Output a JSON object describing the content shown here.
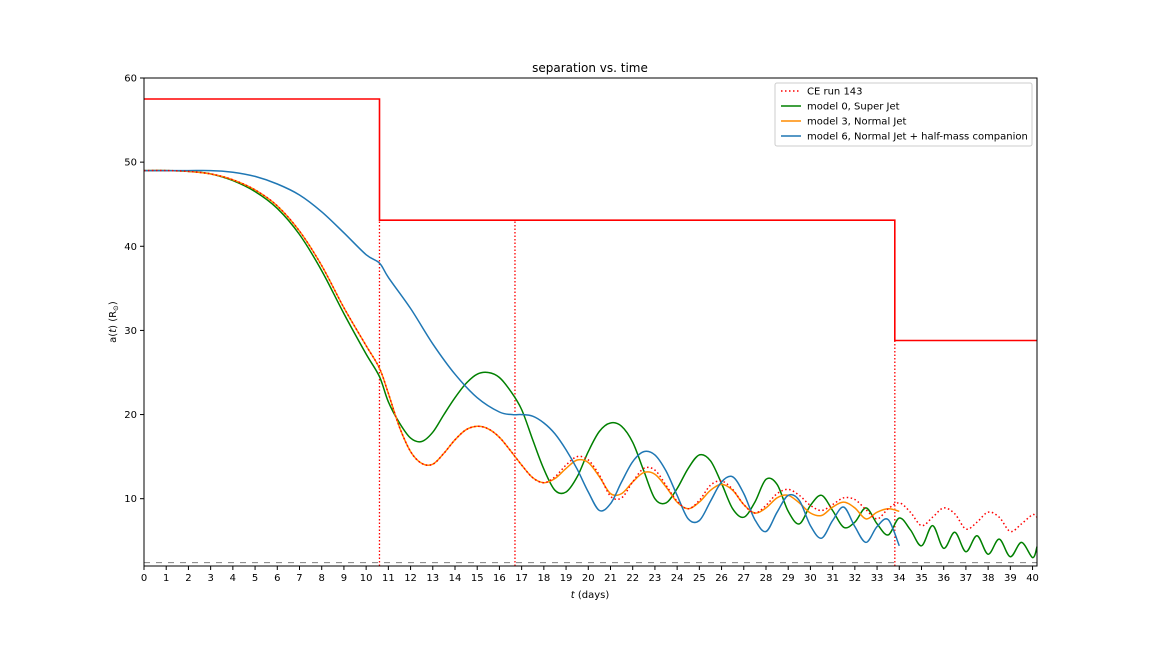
{
  "chart_data": {
    "type": "line",
    "title": "separation vs. time",
    "xlabel_italic": "t",
    "xlabel_rest": " (days)",
    "ylabel_a": "a(",
    "ylabel_t": "t",
    "ylabel_rest": ") (R",
    "ylabel_sun": "⊙",
    "ylabel_close": ")",
    "xlim": [
      0,
      40.2
    ],
    "ylim": [
      2,
      60
    ],
    "xticks": [
      0,
      1,
      2,
      3,
      4,
      5,
      6,
      7,
      8,
      9,
      10,
      11,
      12,
      13,
      14,
      15,
      16,
      17,
      18,
      19,
      20,
      21,
      22,
      23,
      24,
      25,
      26,
      27,
      28,
      29,
      30,
      31,
      32,
      33,
      34,
      35,
      36,
      37,
      38,
      39,
      40
    ],
    "yticks": [
      10,
      20,
      30,
      40,
      50,
      60
    ],
    "grid": false,
    "legend_position": "upper right",
    "series": [
      {
        "name": "CE run 143",
        "color": "#ff0000",
        "style": "dotted",
        "points": [
          [
            0,
            49
          ],
          [
            1,
            49
          ],
          [
            2,
            48.9
          ],
          [
            3,
            48.6
          ],
          [
            4,
            47.9
          ],
          [
            5,
            46.7
          ],
          [
            6,
            44.8
          ],
          [
            7,
            41.8
          ],
          [
            8,
            37.7
          ],
          [
            9,
            32.7
          ],
          [
            10,
            28.2
          ],
          [
            10.6,
            25.5
          ],
          [
            11,
            22.5
          ],
          [
            11.5,
            18.5
          ],
          [
            12,
            15.6
          ],
          [
            12.5,
            14.2
          ],
          [
            13,
            14.1
          ],
          [
            13.5,
            15.4
          ],
          [
            14,
            17.0
          ],
          [
            14.5,
            18.2
          ],
          [
            15,
            18.6
          ],
          [
            15.5,
            18.3
          ],
          [
            16,
            17.3
          ],
          [
            16.5,
            15.7
          ],
          [
            17,
            14.0
          ],
          [
            17.5,
            12.5
          ],
          [
            18,
            11.9
          ],
          [
            18.5,
            12.6
          ],
          [
            19,
            14.0
          ],
          [
            19.5,
            15.0
          ],
          [
            20,
            14.6
          ],
          [
            20.5,
            12.8
          ],
          [
            21,
            10.3
          ],
          [
            21.5,
            10.1
          ],
          [
            22,
            12.0
          ],
          [
            22.5,
            13.6
          ],
          [
            23,
            13.4
          ],
          [
            23.5,
            11.6
          ],
          [
            24,
            9.7
          ],
          [
            24.5,
            8.8
          ],
          [
            25,
            9.8
          ],
          [
            25.5,
            11.6
          ],
          [
            26,
            12.1
          ],
          [
            26.5,
            11.1
          ],
          [
            27,
            9.3
          ],
          [
            27.5,
            8.3
          ],
          [
            28,
            9.2
          ],
          [
            28.5,
            10.6
          ],
          [
            29,
            11.1
          ],
          [
            29.5,
            10.4
          ],
          [
            30,
            9.2
          ],
          [
            30.5,
            8.6
          ],
          [
            31,
            9.3
          ],
          [
            31.5,
            10.1
          ],
          [
            32,
            9.9
          ],
          [
            32.5,
            8.7
          ],
          [
            33,
            7.6
          ],
          [
            33.5,
            8.8
          ],
          [
            34,
            9.5
          ],
          [
            34.5,
            8.4
          ],
          [
            35,
            6.8
          ],
          [
            35.5,
            7.8
          ],
          [
            36,
            8.9
          ],
          [
            36.5,
            8.2
          ],
          [
            37,
            6.4
          ],
          [
            37.5,
            7.2
          ],
          [
            38,
            8.4
          ],
          [
            38.5,
            7.8
          ],
          [
            39,
            6.1
          ],
          [
            39.5,
            7.0
          ],
          [
            40,
            8.1
          ],
          [
            40.2,
            7.8
          ]
        ]
      },
      {
        "name": "model 0, Super Jet",
        "color": "#008000",
        "style": "solid",
        "points": [
          [
            0,
            49
          ],
          [
            1,
            49
          ],
          [
            2,
            48.9
          ],
          [
            3,
            48.6
          ],
          [
            4,
            47.8
          ],
          [
            5,
            46.5
          ],
          [
            6,
            44.5
          ],
          [
            7,
            41.4
          ],
          [
            8,
            37.1
          ],
          [
            9,
            32.0
          ],
          [
            10,
            27.2
          ],
          [
            10.6,
            24.5
          ],
          [
            11,
            21.5
          ],
          [
            11.5,
            19.0
          ],
          [
            12,
            17.2
          ],
          [
            12.5,
            16.8
          ],
          [
            13,
            17.9
          ],
          [
            13.5,
            20.0
          ],
          [
            14,
            22.0
          ],
          [
            14.5,
            23.7
          ],
          [
            15,
            24.8
          ],
          [
            15.5,
            25.0
          ],
          [
            16,
            24.4
          ],
          [
            16.5,
            22.8
          ],
          [
            17,
            20.6
          ],
          [
            17.5,
            17.0
          ],
          [
            18,
            13.5
          ],
          [
            18.5,
            11.0
          ],
          [
            19,
            10.8
          ],
          [
            19.5,
            12.6
          ],
          [
            20,
            15.6
          ],
          [
            20.5,
            18.0
          ],
          [
            21,
            19.0
          ],
          [
            21.5,
            18.6
          ],
          [
            22,
            16.7
          ],
          [
            22.5,
            13.3
          ],
          [
            23,
            10.0
          ],
          [
            23.5,
            9.5
          ],
          [
            24,
            11.2
          ],
          [
            24.5,
            13.6
          ],
          [
            25,
            15.2
          ],
          [
            25.5,
            14.5
          ],
          [
            26,
            11.8
          ],
          [
            26.5,
            8.8
          ],
          [
            27,
            7.8
          ],
          [
            27.5,
            9.6
          ],
          [
            28,
            12.3
          ],
          [
            28.5,
            11.7
          ],
          [
            29,
            8.5
          ],
          [
            29.5,
            7.0
          ],
          [
            30,
            9.2
          ],
          [
            30.5,
            10.4
          ],
          [
            31,
            8.6
          ],
          [
            31.5,
            6.6
          ],
          [
            32,
            7.2
          ],
          [
            32.5,
            8.9
          ],
          [
            33,
            7.0
          ],
          [
            33.5,
            5.7
          ],
          [
            34,
            7.7
          ],
          [
            34.5,
            6.3
          ],
          [
            35,
            4.4
          ],
          [
            35.5,
            6.8
          ],
          [
            36,
            4.1
          ],
          [
            36.5,
            6.0
          ],
          [
            37,
            3.7
          ],
          [
            37.5,
            5.6
          ],
          [
            38,
            3.4
          ],
          [
            38.5,
            5.2
          ],
          [
            39,
            3.1
          ],
          [
            39.5,
            4.8
          ],
          [
            40,
            3.0
          ],
          [
            40.2,
            4.3
          ]
        ]
      },
      {
        "name": "model 3, Normal Jet",
        "color": "#ff8c00",
        "style": "solid",
        "points": [
          [
            0,
            49
          ],
          [
            1,
            49
          ],
          [
            2,
            48.9
          ],
          [
            3,
            48.6
          ],
          [
            4,
            47.9
          ],
          [
            5,
            46.7
          ],
          [
            6,
            44.8
          ],
          [
            7,
            41.8
          ],
          [
            8,
            37.7
          ],
          [
            9,
            32.7
          ],
          [
            10,
            28.2
          ],
          [
            10.6,
            25.5
          ],
          [
            11,
            22.5
          ],
          [
            11.5,
            18.5
          ],
          [
            12,
            15.6
          ],
          [
            12.5,
            14.2
          ],
          [
            13,
            14.1
          ],
          [
            13.5,
            15.4
          ],
          [
            14,
            17.0
          ],
          [
            14.5,
            18.2
          ],
          [
            15,
            18.6
          ],
          [
            15.5,
            18.3
          ],
          [
            16,
            17.3
          ],
          [
            16.5,
            15.7
          ],
          [
            17,
            14.0
          ],
          [
            17.5,
            12.5
          ],
          [
            18,
            11.9
          ],
          [
            18.5,
            12.4
          ],
          [
            19,
            13.6
          ],
          [
            19.5,
            14.6
          ],
          [
            20,
            14.3
          ],
          [
            20.5,
            12.6
          ],
          [
            21,
            10.6
          ],
          [
            21.5,
            10.6
          ],
          [
            22,
            12.0
          ],
          [
            22.5,
            13.1
          ],
          [
            23,
            12.9
          ],
          [
            23.5,
            11.4
          ],
          [
            24,
            9.6
          ],
          [
            24.5,
            8.8
          ],
          [
            25,
            9.6
          ],
          [
            25.5,
            11.0
          ],
          [
            26,
            11.7
          ],
          [
            26.5,
            11.0
          ],
          [
            27,
            9.3
          ],
          [
            27.5,
            8.3
          ],
          [
            28,
            8.9
          ],
          [
            28.5,
            10.1
          ],
          [
            29,
            10.4
          ],
          [
            29.5,
            9.5
          ],
          [
            30,
            8.3
          ],
          [
            30.5,
            8.0
          ],
          [
            31,
            9.0
          ],
          [
            31.5,
            9.6
          ],
          [
            32,
            8.9
          ],
          [
            32.5,
            7.6
          ],
          [
            33,
            8.4
          ],
          [
            33.5,
            8.8
          ],
          [
            34,
            8.5
          ]
        ]
      },
      {
        "name": "model 6, Normal Jet + half-mass companion",
        "color": "#1f77b4",
        "style": "solid",
        "points": [
          [
            0,
            49
          ],
          [
            1,
            49
          ],
          [
            2,
            49
          ],
          [
            3,
            49
          ],
          [
            4,
            48.8
          ],
          [
            5,
            48.3
          ],
          [
            6,
            47.4
          ],
          [
            7,
            46.1
          ],
          [
            8,
            44.1
          ],
          [
            9,
            41.6
          ],
          [
            10,
            39.0
          ],
          [
            10.6,
            38.0
          ],
          [
            11,
            36.3
          ],
          [
            12,
            32.6
          ],
          [
            13,
            28.4
          ],
          [
            14,
            24.8
          ],
          [
            15,
            22.0
          ],
          [
            16,
            20.3
          ],
          [
            16.6,
            20.0
          ],
          [
            17,
            20.0
          ],
          [
            17.5,
            19.8
          ],
          [
            18,
            19.0
          ],
          [
            18.5,
            17.7
          ],
          [
            19,
            15.8
          ],
          [
            19.5,
            13.5
          ],
          [
            20,
            10.8
          ],
          [
            20.5,
            8.6
          ],
          [
            21,
            9.4
          ],
          [
            21.5,
            12.0
          ],
          [
            22,
            14.4
          ],
          [
            22.5,
            15.6
          ],
          [
            23,
            15.2
          ],
          [
            23.5,
            13.3
          ],
          [
            24,
            10.4
          ],
          [
            24.5,
            7.6
          ],
          [
            25,
            7.4
          ],
          [
            25.5,
            9.7
          ],
          [
            26,
            12.0
          ],
          [
            26.5,
            12.6
          ],
          [
            27,
            10.6
          ],
          [
            27.5,
            7.5
          ],
          [
            28,
            6.1
          ],
          [
            28.5,
            8.4
          ],
          [
            29,
            10.4
          ],
          [
            29.5,
            9.8
          ],
          [
            30,
            6.8
          ],
          [
            30.5,
            5.3
          ],
          [
            31,
            7.4
          ],
          [
            31.5,
            9.0
          ],
          [
            32,
            6.7
          ],
          [
            32.5,
            4.8
          ],
          [
            33,
            6.7
          ],
          [
            33.5,
            7.5
          ],
          [
            34,
            4.4
          ]
        ]
      }
    ],
    "step_line": {
      "color": "#ff0000",
      "points": [
        [
          0,
          57.5
        ],
        [
          10.6,
          57.5
        ],
        [
          10.6,
          43.1
        ],
        [
          33.8,
          43.1
        ],
        [
          33.8,
          28.8
        ],
        [
          40.2,
          28.8
        ]
      ]
    },
    "vertical_lines": [
      {
        "x": 10.6,
        "y_top": 43.1,
        "color": "#ff0000",
        "style": "dotted"
      },
      {
        "x": 16.7,
        "y_top": 43.1,
        "color": "#ff0000",
        "style": "dotted"
      },
      {
        "x": 33.8,
        "y_top": 28.8,
        "color": "#ff0000",
        "style": "dotted"
      }
    ],
    "horizontal_lines": [
      {
        "y": 2.4,
        "color": "#808080",
        "style": "dashed"
      }
    ]
  }
}
